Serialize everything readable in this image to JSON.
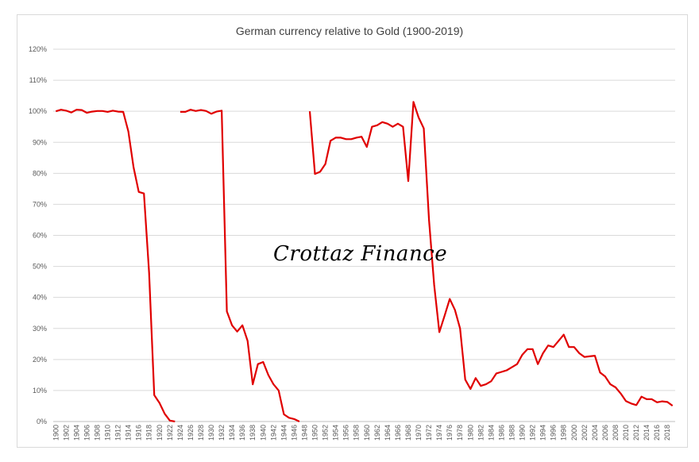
{
  "chart_data": {
    "type": "line",
    "title": "German currency relative to Gold (1900-2019)",
    "xlabel": "",
    "ylabel": "",
    "ylim": [
      0,
      120
    ],
    "y_ticks": [
      "0%",
      "10%",
      "20%",
      "30%",
      "40%",
      "50%",
      "60%",
      "70%",
      "80%",
      "90%",
      "100%",
      "110%",
      "120%"
    ],
    "x_range": [
      1900,
      2019
    ],
    "x_tick_labels": [
      "1900",
      "1902",
      "1904",
      "1906",
      "1908",
      "1910",
      "1912",
      "1914",
      "1916",
      "1918",
      "1920",
      "1922",
      "1924",
      "1926",
      "1928",
      "1930",
      "1932",
      "1934",
      "1936",
      "1938",
      "1940",
      "1942",
      "1944",
      "1946",
      "1948",
      "1950",
      "1952",
      "1954",
      "1956",
      "1958",
      "1960",
      "1962",
      "1964",
      "1966",
      "1968",
      "1970",
      "1972",
      "1974",
      "1976",
      "1978",
      "1980",
      "1982",
      "1984",
      "1986",
      "1988",
      "1990",
      "1992",
      "1994",
      "1996",
      "1998",
      "2000",
      "2002",
      "2004",
      "2006",
      "2008",
      "2010",
      "2012",
      "2014",
      "2016",
      "2018"
    ],
    "grid": "horizontal",
    "line_color": "#e00000",
    "segments": [
      {
        "x": [
          1900,
          1901,
          1902,
          1903,
          1904,
          1905,
          1906,
          1907,
          1908,
          1909,
          1910,
          1911,
          1912,
          1913,
          1914,
          1915,
          1916,
          1917,
          1918,
          1919,
          1920,
          1921,
          1922,
          1923
        ],
        "y": [
          100,
          100.5,
          100.2,
          99.6,
          100.5,
          100.4,
          99.5,
          99.9,
          100.1,
          100.1,
          99.8,
          100.2,
          99.9,
          99.8,
          93.5,
          82,
          74,
          73.5,
          48,
          8.5,
          6,
          2.5,
          0.3,
          0
        ]
      },
      {
        "x": [
          1924,
          1925,
          1926,
          1927,
          1928,
          1929,
          1930,
          1931,
          1932,
          1933,
          1934,
          1935,
          1936,
          1937,
          1938,
          1939,
          1940,
          1941,
          1942,
          1943,
          1944,
          1945,
          1946,
          1947
        ],
        "y": [
          99.8,
          99.8,
          100.5,
          100.1,
          100.4,
          100.1,
          99.2,
          99.9,
          100.2,
          35.5,
          31,
          29,
          31,
          26,
          12,
          18.5,
          19.2,
          15,
          12,
          10,
          2.3,
          1.2,
          0.8,
          0
        ]
      },
      {
        "x": [
          1949,
          1950,
          1951,
          1952,
          1953,
          1954,
          1955,
          1956,
          1957,
          1958,
          1959,
          1960,
          1961,
          1962,
          1963,
          1964,
          1965,
          1966,
          1967,
          1968,
          1969,
          1970,
          1971,
          1972,
          1973,
          1974,
          1975,
          1976,
          1977,
          1978,
          1979,
          1980,
          1981,
          1982,
          1983,
          1984,
          1985,
          1986,
          1987,
          1988,
          1989,
          1990,
          1991,
          1992,
          1993,
          1994,
          1995,
          1996,
          1997,
          1998,
          1999,
          2000,
          2001,
          2002,
          2003,
          2004,
          2005,
          2006,
          2007,
          2008,
          2009,
          2010,
          2011,
          2012,
          2013,
          2014,
          2015,
          2016,
          2017,
          2018,
          2019
        ],
        "y": [
          100,
          79.8,
          80.5,
          83,
          90.5,
          91.5,
          91.5,
          91,
          91,
          91.5,
          91.8,
          88.5,
          95,
          95.5,
          96.5,
          96,
          95,
          96,
          95,
          77.5,
          103,
          98,
          94.5,
          65,
          44,
          28.8,
          34,
          39.5,
          36,
          30,
          13.5,
          10.5,
          14,
          11.5,
          12,
          13,
          15.5,
          16,
          16.5,
          17.5,
          18.5,
          21.5,
          23.3,
          23.3,
          18.5,
          22,
          24.5,
          24,
          26,
          28,
          24,
          24,
          22,
          20.8,
          21,
          21.2,
          15.8,
          14.5,
          12,
          11,
          9,
          6.6,
          5.8,
          5.3,
          8,
          7.2,
          7.2,
          6.2,
          6.5,
          6.3,
          5.1
        ]
      }
    ]
  },
  "watermark_text": "Crottaz Finance"
}
